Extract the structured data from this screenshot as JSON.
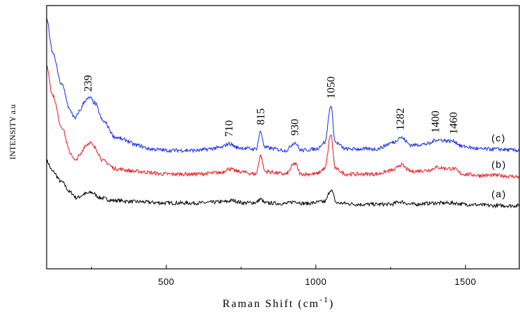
{
  "chart_data": {
    "type": "line",
    "title": "",
    "xlabel": "Raman Shift (cm",
    "xlabel_sup": "-1",
    "xlabel_close": ")",
    "ylabel": "INTENSITY a.u",
    "xlim": [
      100,
      1680
    ],
    "ylim": [
      0,
      1
    ],
    "y_ticks_labeled": false,
    "x_ticks": [
      500,
      1000,
      1500
    ],
    "x_tick_labels": [
      "500",
      "1000",
      "1500"
    ],
    "grid": false,
    "legend": "none",
    "peaks": [
      {
        "label": "239",
        "x": 239
      },
      {
        "label": "710",
        "x": 710
      },
      {
        "label": "815",
        "x": 815
      },
      {
        "label": "930",
        "x": 930
      },
      {
        "label": "1050",
        "x": 1050
      },
      {
        "label": "1282",
        "x": 1282
      },
      {
        "label": "1400",
        "x": 1400
      },
      {
        "label": "1460",
        "x": 1460
      }
    ],
    "series": [
      {
        "name": "(a)",
        "color": "#000000",
        "points": [
          [
            100,
            0.41
          ],
          [
            120,
            0.37
          ],
          [
            150,
            0.33
          ],
          [
            180,
            0.29
          ],
          [
            200,
            0.27
          ],
          [
            230,
            0.285
          ],
          [
            250,
            0.29
          ],
          [
            280,
            0.27
          ],
          [
            320,
            0.26
          ],
          [
            400,
            0.255
          ],
          [
            500,
            0.25
          ],
          [
            600,
            0.25
          ],
          [
            700,
            0.255
          ],
          [
            720,
            0.26
          ],
          [
            760,
            0.25
          ],
          [
            800,
            0.252
          ],
          [
            815,
            0.265
          ],
          [
            830,
            0.25
          ],
          [
            900,
            0.248
          ],
          [
            930,
            0.256
          ],
          [
            960,
            0.248
          ],
          [
            1030,
            0.255
          ],
          [
            1050,
            0.3
          ],
          [
            1070,
            0.25
          ],
          [
            1150,
            0.245
          ],
          [
            1250,
            0.245
          ],
          [
            1282,
            0.255
          ],
          [
            1320,
            0.245
          ],
          [
            1400,
            0.25
          ],
          [
            1460,
            0.25
          ],
          [
            1500,
            0.245
          ],
          [
            1600,
            0.24
          ],
          [
            1680,
            0.24
          ]
        ]
      },
      {
        "name": "(b)",
        "color": "#e8141c",
        "points": [
          [
            100,
            0.77
          ],
          [
            120,
            0.66
          ],
          [
            150,
            0.54
          ],
          [
            180,
            0.44
          ],
          [
            195,
            0.41
          ],
          [
            210,
            0.43
          ],
          [
            230,
            0.47
          ],
          [
            245,
            0.48
          ],
          [
            260,
            0.46
          ],
          [
            290,
            0.41
          ],
          [
            330,
            0.38
          ],
          [
            400,
            0.37
          ],
          [
            500,
            0.36
          ],
          [
            600,
            0.36
          ],
          [
            680,
            0.365
          ],
          [
            710,
            0.38
          ],
          [
            740,
            0.37
          ],
          [
            800,
            0.36
          ],
          [
            815,
            0.43
          ],
          [
            830,
            0.37
          ],
          [
            900,
            0.36
          ],
          [
            930,
            0.4
          ],
          [
            950,
            0.36
          ],
          [
            1000,
            0.36
          ],
          [
            1030,
            0.38
          ],
          [
            1050,
            0.51
          ],
          [
            1065,
            0.38
          ],
          [
            1100,
            0.36
          ],
          [
            1200,
            0.36
          ],
          [
            1260,
            0.375
          ],
          [
            1282,
            0.395
          ],
          [
            1320,
            0.37
          ],
          [
            1380,
            0.375
          ],
          [
            1400,
            0.385
          ],
          [
            1460,
            0.38
          ],
          [
            1490,
            0.36
          ],
          [
            1550,
            0.355
          ],
          [
            1600,
            0.355
          ],
          [
            1680,
            0.35
          ]
        ]
      },
      {
        "name": "(c)",
        "color": "#1428e6",
        "points": [
          [
            100,
            0.95
          ],
          [
            120,
            0.82
          ],
          [
            150,
            0.7
          ],
          [
            180,
            0.6
          ],
          [
            195,
            0.57
          ],
          [
            210,
            0.6
          ],
          [
            230,
            0.64
          ],
          [
            245,
            0.65
          ],
          [
            260,
            0.63
          ],
          [
            290,
            0.56
          ],
          [
            330,
            0.5
          ],
          [
            360,
            0.49
          ],
          [
            400,
            0.47
          ],
          [
            450,
            0.455
          ],
          [
            500,
            0.45
          ],
          [
            600,
            0.45
          ],
          [
            680,
            0.46
          ],
          [
            710,
            0.475
          ],
          [
            740,
            0.46
          ],
          [
            800,
            0.455
          ],
          [
            815,
            0.52
          ],
          [
            830,
            0.46
          ],
          [
            900,
            0.45
          ],
          [
            930,
            0.48
          ],
          [
            950,
            0.45
          ],
          [
            1000,
            0.455
          ],
          [
            1030,
            0.48
          ],
          [
            1050,
            0.62
          ],
          [
            1065,
            0.48
          ],
          [
            1100,
            0.455
          ],
          [
            1200,
            0.455
          ],
          [
            1260,
            0.48
          ],
          [
            1282,
            0.5
          ],
          [
            1320,
            0.47
          ],
          [
            1380,
            0.475
          ],
          [
            1400,
            0.49
          ],
          [
            1460,
            0.485
          ],
          [
            1490,
            0.465
          ],
          [
            1550,
            0.455
          ],
          [
            1600,
            0.455
          ],
          [
            1680,
            0.45
          ]
        ]
      }
    ]
  }
}
